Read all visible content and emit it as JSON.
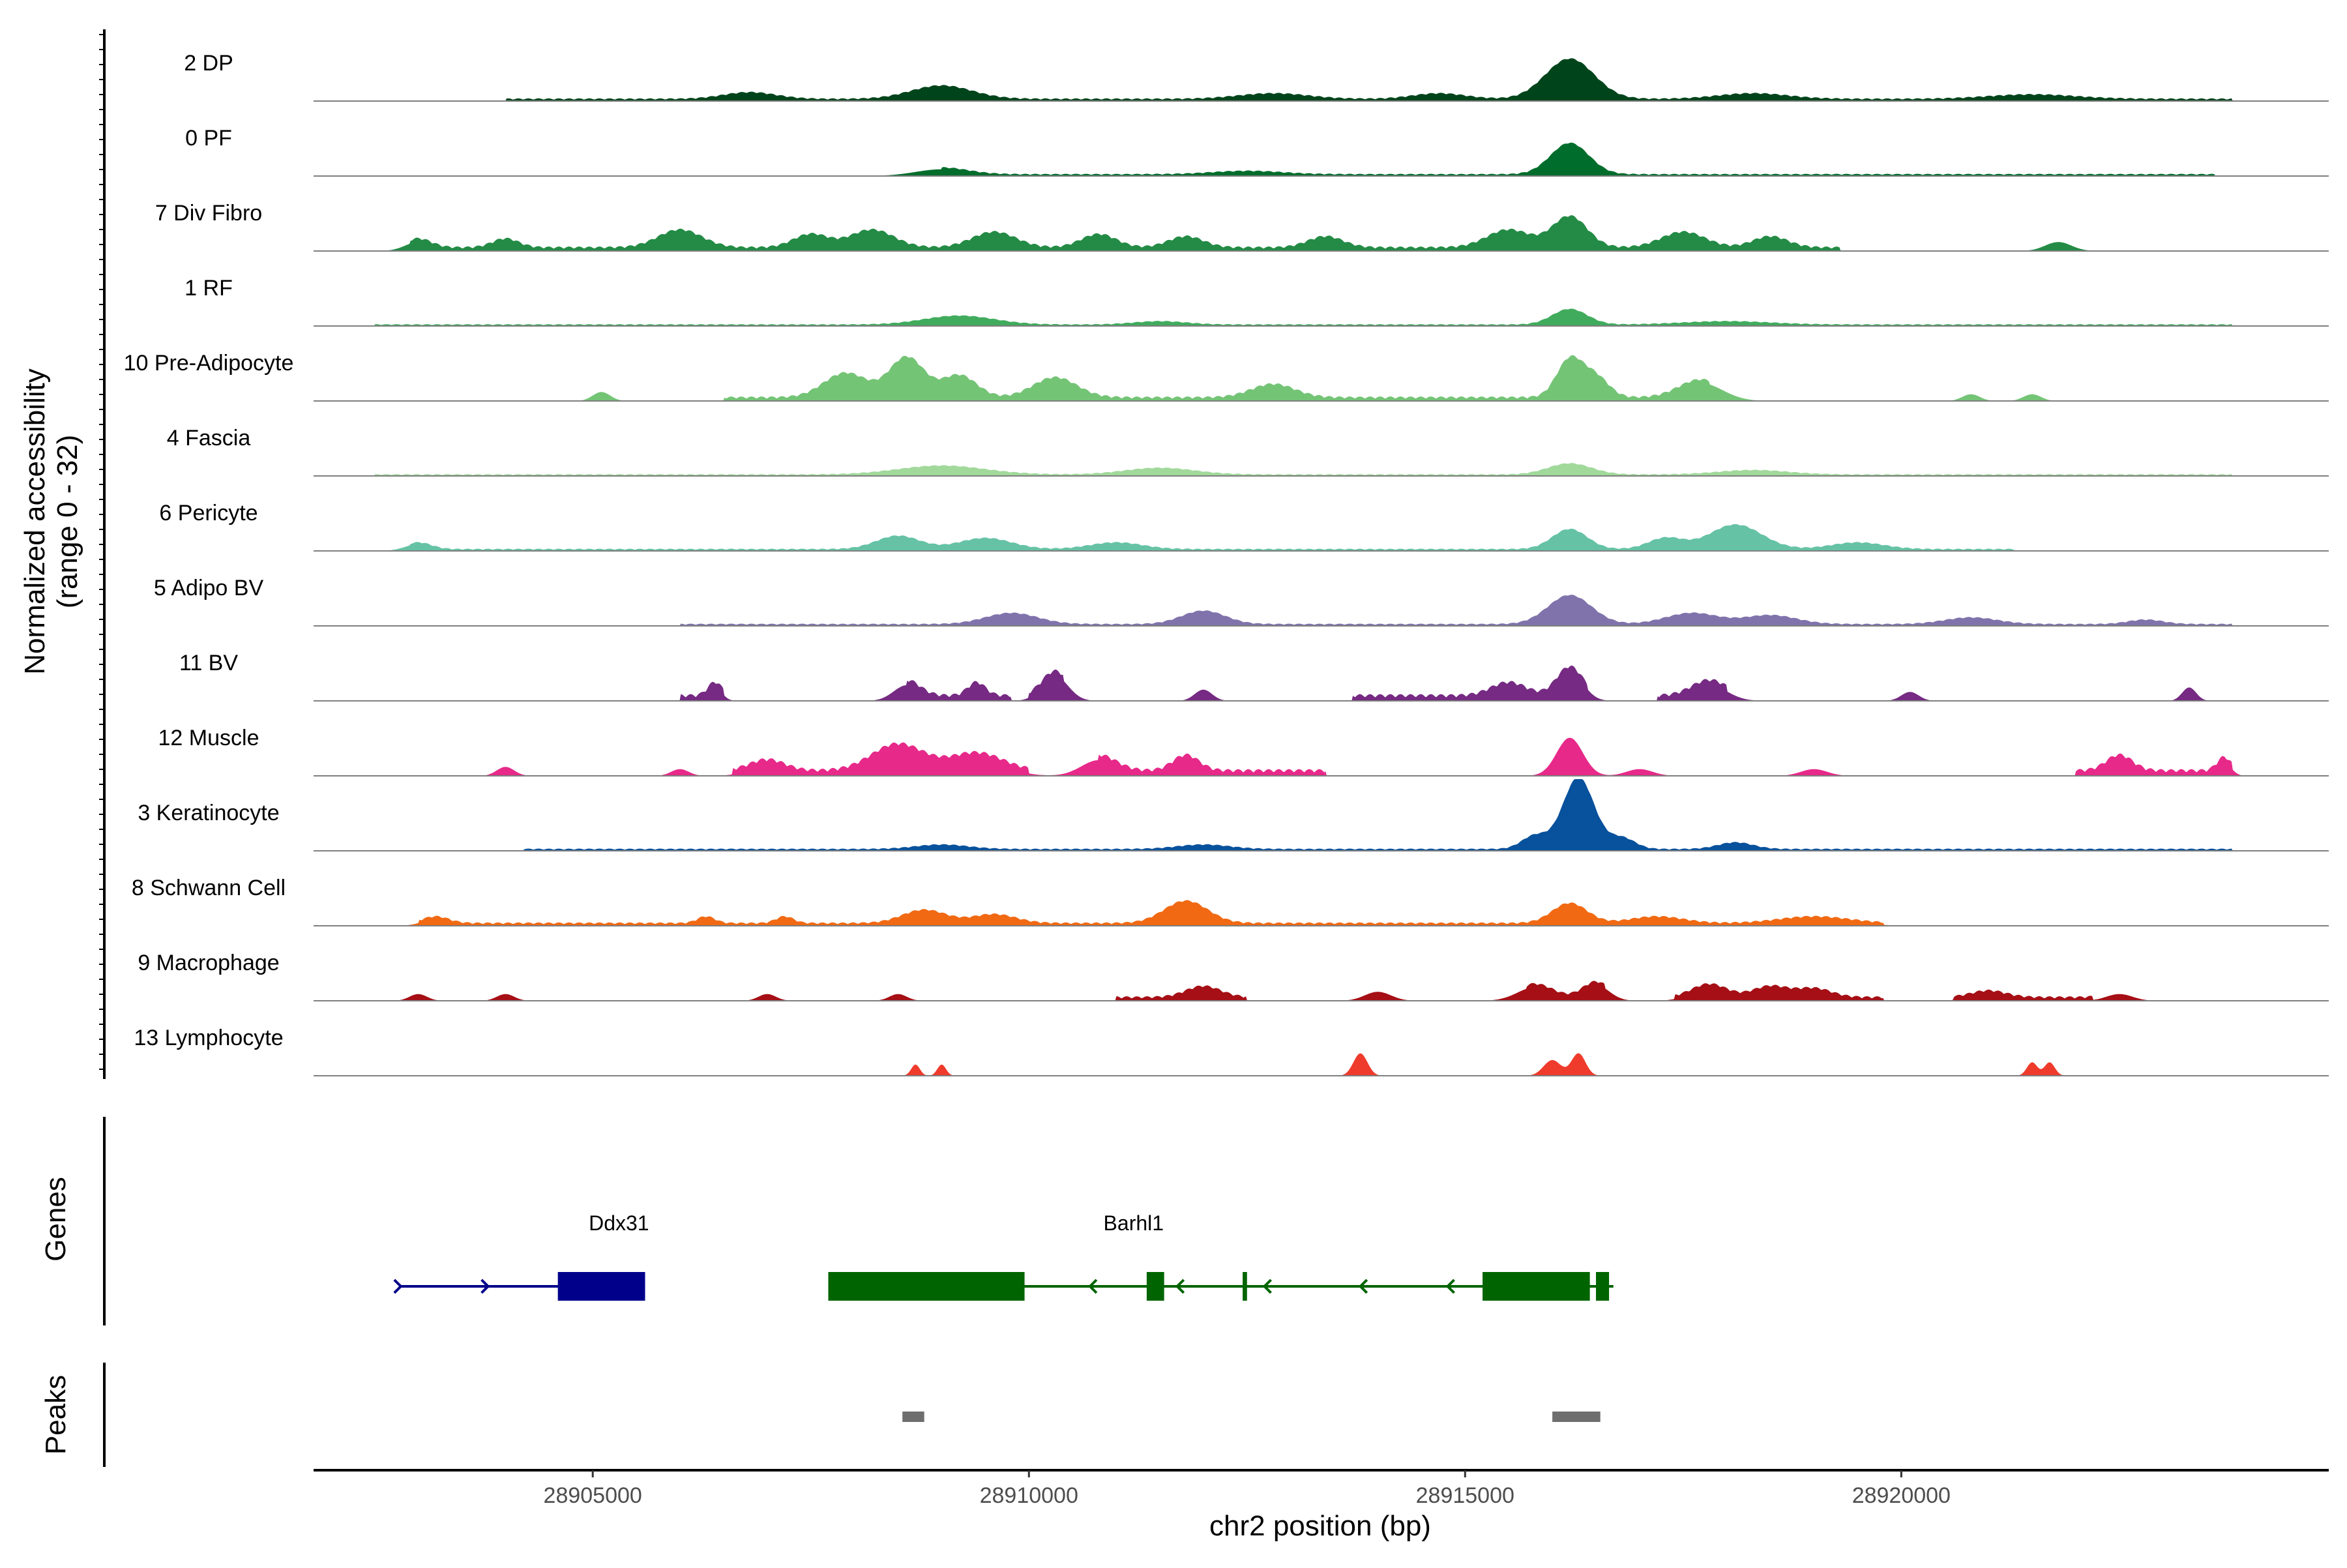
{
  "chart_data": {
    "type": "area",
    "title": "",
    "ylabel": "Normalized accessibility",
    "ylabel_range": "(range 0 - 32)",
    "ylim": [
      0,
      32
    ],
    "xlabel": "chr2 position (bp)",
    "xlim": [
      28901800,
      28924900
    ],
    "x_ticks": [
      28905000,
      28910000,
      28915000,
      28920000
    ],
    "x_tick_labels": [
      "28905000",
      "28910000",
      "28915000",
      "28920000"
    ],
    "tracks": [
      {
        "name": "2 DP",
        "color": "#00441b",
        "peaks": [
          [
            28909000,
            6,
            350
          ],
          [
            28916200,
            18,
            280
          ],
          [
            28906800,
            3,
            300
          ],
          [
            28912800,
            2.5,
            400
          ],
          [
            28914700,
            2.5,
            300
          ],
          [
            28918300,
            2.5,
            400
          ],
          [
            28921500,
            2,
            500
          ]
        ],
        "background": 1.2,
        "spans": [
          [
            28904000,
            28923800
          ]
        ]
      },
      {
        "name": "0 PF",
        "color": "#006d2c",
        "peaks": [
          [
            28909000,
            3,
            300
          ],
          [
            28916200,
            14,
            220
          ],
          [
            28912500,
            1.5,
            400
          ]
        ],
        "background": 1.0,
        "spans": [
          [
            28909000,
            28923600
          ]
        ]
      },
      {
        "name": "7 Div Fibro",
        "color": "#238b45",
        "peaks": [
          [
            28903000,
            4,
            150
          ],
          [
            28904000,
            4,
            150
          ],
          [
            28906000,
            8,
            250
          ],
          [
            28907500,
            6,
            200
          ],
          [
            28908200,
            8,
            250
          ],
          [
            28909600,
            7,
            250
          ],
          [
            28910800,
            6,
            200
          ],
          [
            28911800,
            5,
            200
          ],
          [
            28913400,
            5,
            200
          ],
          [
            28915500,
            8,
            250
          ],
          [
            28916200,
            14,
            200
          ],
          [
            28917500,
            7,
            250
          ],
          [
            28918500,
            5,
            200
          ],
          [
            28921800,
            4,
            150
          ]
        ],
        "background": 2.0,
        "spans": [
          [
            28902900,
            28919300
          ]
        ]
      },
      {
        "name": "1 RF",
        "color": "#41ab5d",
        "peaks": [
          [
            28909200,
            4,
            400
          ],
          [
            28916200,
            7,
            200
          ],
          [
            28911500,
            1.5,
            300
          ],
          [
            28918000,
            1.5,
            500
          ]
        ],
        "background": 0.8,
        "spans": [
          [
            28902000,
            28923800
          ]
        ]
      },
      {
        "name": "10 Pre-Adipocyte",
        "color": "#74c476",
        "peaks": [
          [
            28905100,
            4,
            100
          ],
          [
            28907900,
            11,
            250
          ],
          [
            28908600,
            18,
            200
          ],
          [
            28909200,
            10,
            200
          ],
          [
            28910300,
            9,
            250
          ],
          [
            28912800,
            6,
            250
          ],
          [
            28916200,
            17,
            150
          ],
          [
            28916500,
            9,
            150
          ],
          [
            28917700,
            8,
            250
          ],
          [
            28920800,
            3,
            100
          ],
          [
            28921500,
            3,
            100
          ]
        ],
        "background": 2.0,
        "spans": [
          [
            28906500,
            28917800
          ]
        ]
      },
      {
        "name": "4 Fascia",
        "color": "#a1d99b",
        "peaks": [
          [
            28909000,
            4,
            500
          ],
          [
            28911500,
            3,
            400
          ],
          [
            28916200,
            5,
            250
          ],
          [
            28918300,
            2,
            400
          ]
        ],
        "background": 0.8,
        "spans": [
          [
            28902000,
            28923800
          ]
        ]
      },
      {
        "name": "6 Pericyte",
        "color": "#66c2a5",
        "peaks": [
          [
            28903000,
            3,
            150
          ],
          [
            28908500,
            6,
            250
          ],
          [
            28909500,
            5,
            300
          ],
          [
            28911000,
            3,
            300
          ],
          [
            28916200,
            9,
            200
          ],
          [
            28917300,
            5,
            200
          ],
          [
            28918100,
            11,
            300
          ],
          [
            28919500,
            3,
            300
          ]
        ],
        "background": 1.0,
        "spans": [
          [
            28902900,
            28921300
          ]
        ]
      },
      {
        "name": "5 Adipo BV",
        "color": "#8073ac",
        "peaks": [
          [
            28909800,
            5,
            300
          ],
          [
            28912000,
            6,
            250
          ],
          [
            28916200,
            13,
            250
          ],
          [
            28917600,
            5,
            300
          ],
          [
            28918500,
            4,
            300
          ],
          [
            28920800,
            3,
            300
          ],
          [
            28922800,
            2,
            200
          ]
        ],
        "background": 1.0,
        "spans": [
          [
            28906000,
            28923800
          ]
        ]
      },
      {
        "name": "11 BV",
        "color": "#762a83",
        "peaks": [
          [
            28906400,
            6,
            80
          ],
          [
            28908600,
            7,
            150
          ],
          [
            28909400,
            6,
            100
          ],
          [
            28910300,
            11,
            150
          ],
          [
            28912000,
            5,
            100
          ],
          [
            28915500,
            6,
            200
          ],
          [
            28916200,
            13,
            150
          ],
          [
            28917800,
            7,
            200
          ],
          [
            28920100,
            4,
            100
          ],
          [
            28923300,
            6,
            80
          ]
        ],
        "background": 3.0,
        "spans": [
          [
            28906000,
            28906500
          ],
          [
            28908600,
            28909800
          ],
          [
            28910000,
            28910400
          ],
          [
            28913700,
            28916400
          ],
          [
            28917200,
            28918000
          ]
        ]
      },
      {
        "name": "12 Muscle",
        "color": "#e7298a",
        "peaks": [
          [
            28904000,
            4,
            100
          ],
          [
            28906000,
            3,
            100
          ],
          [
            28907000,
            5,
            200
          ],
          [
            28908500,
            12,
            300
          ],
          [
            28909400,
            8,
            300
          ],
          [
            28910800,
            7,
            200
          ],
          [
            28911800,
            7,
            150
          ],
          [
            28916200,
            17,
            150
          ],
          [
            28917000,
            3,
            150
          ],
          [
            28919000,
            3,
            150
          ],
          [
            28922500,
            7,
            150
          ],
          [
            28923700,
            6,
            80
          ]
        ],
        "background": 3.0,
        "spans": [
          [
            28906600,
            28910000
          ],
          [
            28910800,
            28913400
          ],
          [
            28922000,
            28923800
          ]
        ]
      },
      {
        "name": "3 Keratinocyte",
        "color": "#08519c",
        "peaks": [
          [
            28916300,
            32,
            180
          ],
          [
            28915800,
            6,
            150
          ],
          [
            28916800,
            5,
            150
          ],
          [
            28918100,
            3,
            200
          ],
          [
            28909000,
            2,
            300
          ],
          [
            28912000,
            2,
            300
          ]
        ],
        "background": 1.0,
        "spans": [
          [
            28904200,
            28923800
          ]
        ]
      },
      {
        "name": "8 Schwann Cell",
        "color": "#f16913",
        "peaks": [
          [
            28903200,
            3,
            150
          ],
          [
            28906300,
            3,
            100
          ],
          [
            28907200,
            3,
            100
          ],
          [
            28908800,
            6,
            250
          ],
          [
            28909600,
            4,
            250
          ],
          [
            28911800,
            10,
            250
          ],
          [
            28916200,
            9,
            200
          ],
          [
            28917200,
            3,
            300
          ],
          [
            28919000,
            3,
            400
          ]
        ],
        "background": 1.5,
        "spans": [
          [
            28903000,
            28919800
          ]
        ]
      },
      {
        "name": "9 Macrophage",
        "color": "#a50f15",
        "peaks": [
          [
            28903000,
            3,
            100
          ],
          [
            28904000,
            3,
            100
          ],
          [
            28907000,
            3,
            100
          ],
          [
            28908500,
            3,
            100
          ],
          [
            28912000,
            5,
            200
          ],
          [
            28914000,
            4,
            150
          ],
          [
            28915800,
            6,
            200
          ],
          [
            28916500,
            7,
            150
          ],
          [
            28917800,
            6,
            200
          ],
          [
            28918500,
            5,
            200
          ],
          [
            28919000,
            4,
            200
          ],
          [
            28921000,
            3,
            200
          ],
          [
            28922500,
            3,
            150
          ]
        ],
        "background": 2.0,
        "spans": [
          [
            28911000,
            28912500
          ],
          [
            28915700,
            28916600
          ],
          [
            28917400,
            28919800
          ],
          [
            28920600,
            28922200
          ]
        ]
      },
      {
        "name": "13 Lymphocyte",
        "color": "#ef3b2c",
        "peaks": [
          [
            28908700,
            5,
            50
          ],
          [
            28909000,
            5,
            50
          ],
          [
            28913800,
            10,
            80
          ],
          [
            28916000,
            7,
            100
          ],
          [
            28916300,
            10,
            80
          ],
          [
            28921500,
            6,
            60
          ],
          [
            28921700,
            6,
            60
          ]
        ],
        "background": 0,
        "spans": []
      }
    ],
    "genes": [
      {
        "name": "Ddx31",
        "strand": "+",
        "color": "#00008b",
        "start": 28902800,
        "end": 28905600,
        "exons": [
          [
            28904600,
            28905600
          ]
        ],
        "arrows": [
          28902800,
          28903800
        ]
      },
      {
        "name": "Barhl1",
        "strand": "-",
        "color": "#006400",
        "start": 28907700,
        "end": 28916700,
        "exons": [
          [
            28907700,
            28909950
          ],
          [
            28911350,
            28911550
          ],
          [
            28912450,
            28912500
          ],
          [
            28915200,
            28916430
          ],
          [
            28916500,
            28916650
          ]
        ],
        "arrows": [
          28910700,
          28911700,
          28912700,
          28913800,
          28914800
        ]
      }
    ],
    "gene_track_label": "Genes",
    "peaks_track_label": "Peaks",
    "peak_regions": [
      [
        28908550,
        28908800
      ],
      [
        28916000,
        28916550
      ]
    ]
  }
}
